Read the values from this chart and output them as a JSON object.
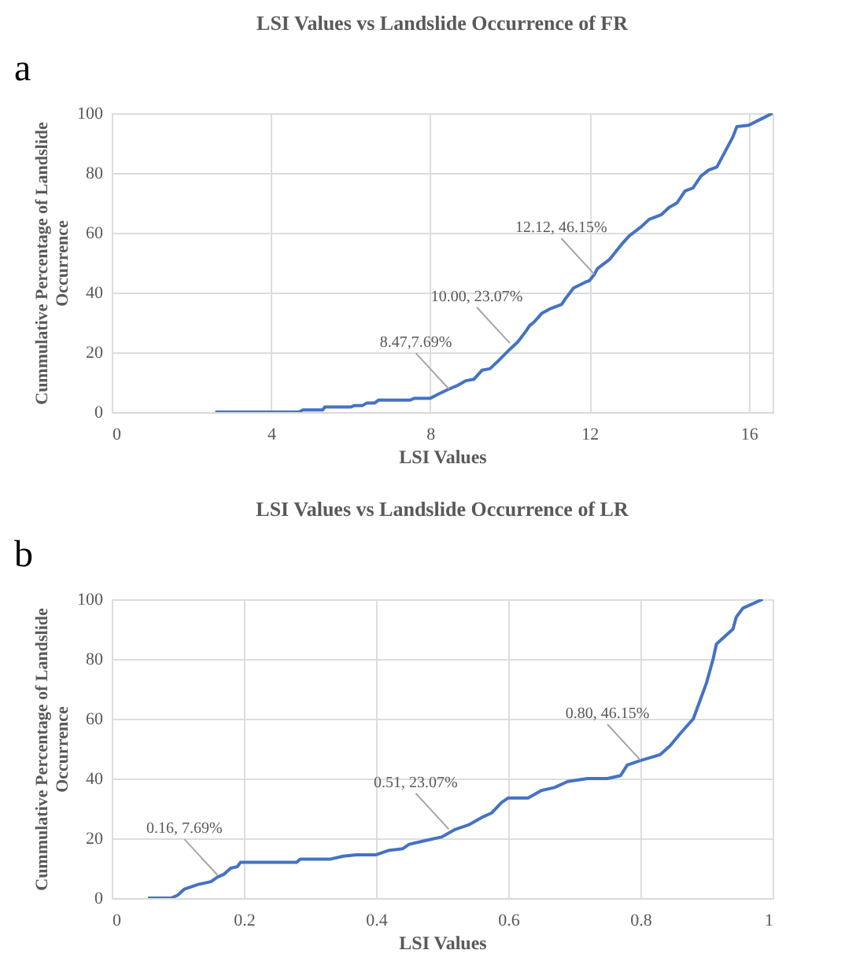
{
  "chart_data": [
    {
      "type": "line",
      "title": "LSI Values vs Landslide Occurrence of FR",
      "xlabel": "LSI Values",
      "ylabel": "Cummulative Percentage of Landslide Occurrence",
      "xlim": [
        0,
        16.6
      ],
      "xticks": [
        0,
        4,
        8,
        12,
        16
      ],
      "ylim": [
        0,
        100
      ],
      "yticks": [
        0,
        20,
        40,
        60,
        80,
        100
      ],
      "grid": true,
      "annotations": [
        "a",
        {
          "text": "8.47,7.69%",
          "x": 8.47,
          "y": 7.69
        },
        {
          "text": "10.00, 23.07%",
          "x": 10.0,
          "y": 23.07
        },
        {
          "text": "12.12, 46.15%",
          "x": 12.12,
          "y": 46.15
        }
      ],
      "series": [
        {
          "color": "#4472c4",
          "x": [
            2.6,
            4.7,
            4.8,
            5.3,
            5.35,
            6.0,
            6.1,
            6.3,
            6.4,
            6.6,
            6.7,
            7.5,
            7.6,
            8.0,
            8.2,
            8.47,
            8.7,
            8.9,
            9.1,
            9.3,
            9.5,
            9.7,
            10.0,
            10.2,
            10.4,
            10.5,
            10.6,
            10.8,
            11.0,
            11.3,
            11.4,
            11.6,
            11.9,
            12.0,
            12.12,
            12.2,
            12.5,
            12.8,
            13.0,
            13.3,
            13.5,
            13.8,
            14.0,
            14.2,
            14.4,
            14.6,
            14.8,
            15.0,
            15.2,
            15.4,
            15.6,
            15.7,
            16.0,
            16.3,
            16.6
          ],
          "values": [
            0,
            0,
            0.7,
            0.7,
            1.7,
            1.7,
            2.2,
            2.2,
            3,
            3,
            4,
            4,
            4.6,
            4.6,
            6,
            7.7,
            9,
            10.5,
            11,
            14,
            14.5,
            17,
            21,
            23.5,
            27,
            29,
            30,
            33,
            34.5,
            36,
            38,
            41.5,
            43.5,
            44,
            46,
            48,
            51,
            56,
            59,
            62,
            64.5,
            66,
            68.5,
            70,
            74,
            75,
            79,
            81,
            82,
            87,
            92,
            95.5,
            96,
            98,
            100
          ]
        }
      ]
    },
    {
      "type": "line",
      "title": "LSI Values vs Landslide Occurrence of LR",
      "xlabel": "LSI Values",
      "ylabel": "Cummulative Percentage of Landslide Occurrence",
      "xlim": [
        0,
        1
      ],
      "xticks": [
        0,
        0.2,
        0.4,
        0.6,
        0.8,
        1
      ],
      "ylim": [
        0,
        100
      ],
      "yticks": [
        0,
        20,
        40,
        60,
        80,
        100
      ],
      "grid": true,
      "annotations": [
        "b",
        {
          "text": "0.16, 7.69%",
          "x": 0.16,
          "y": 7.69
        },
        {
          "text": "0.51, 23.07%",
          "x": 0.51,
          "y": 23.07
        },
        {
          "text": "0.80, 46.15%",
          "x": 0.8,
          "y": 46.15
        }
      ],
      "series": [
        {
          "color": "#4472c4",
          "x": [
            0.055,
            0.09,
            0.1,
            0.11,
            0.13,
            0.15,
            0.16,
            0.17,
            0.18,
            0.19,
            0.195,
            0.28,
            0.285,
            0.33,
            0.35,
            0.37,
            0.4,
            0.42,
            0.44,
            0.45,
            0.47,
            0.5,
            0.52,
            0.54,
            0.56,
            0.575,
            0.59,
            0.6,
            0.63,
            0.65,
            0.67,
            0.69,
            0.72,
            0.75,
            0.77,
            0.78,
            0.8,
            0.83,
            0.845,
            0.86,
            0.88,
            0.89,
            0.9,
            0.91,
            0.915,
            0.93,
            0.94,
            0.945,
            0.955,
            0.985
          ],
          "values": [
            0,
            0,
            1,
            3,
            4.5,
            5.5,
            7,
            8,
            10,
            10.5,
            12,
            12,
            13,
            13,
            14,
            14.5,
            14.5,
            16,
            16.5,
            18,
            19,
            20.5,
            23,
            24.5,
            27,
            28.5,
            32,
            33.5,
            33.5,
            36,
            37,
            39,
            40,
            40,
            41,
            44.5,
            46,
            48,
            51,
            55,
            60,
            66,
            72,
            80,
            85,
            88,
            90,
            94,
            97,
            100
          ]
        }
      ]
    }
  ]
}
